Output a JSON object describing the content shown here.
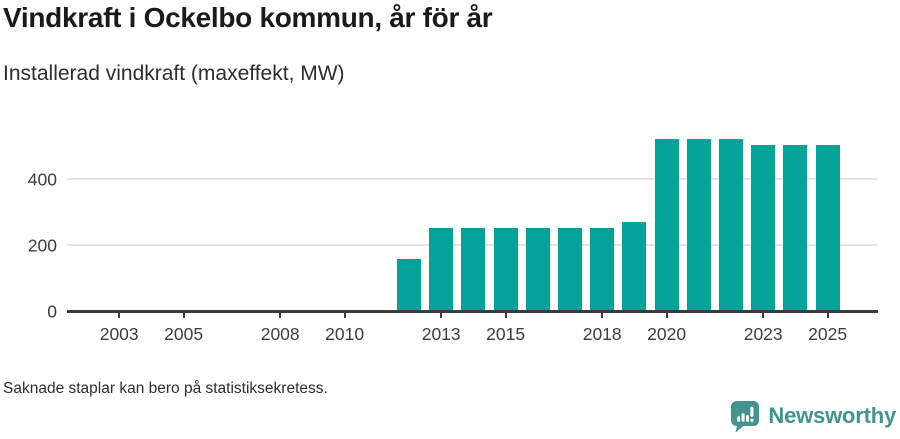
{
  "header": {
    "title": "Vindkraft i Ockelbo kommun, år för år",
    "subtitle": "Installerad vindkraft (maxeffekt, MW)"
  },
  "footer": {
    "note": "Saknade staplar kan bero på statistiksekretess."
  },
  "branding": {
    "name": "Newsworthy",
    "logo_icon": "bar-chart-speech-bubble-badge"
  },
  "colors": {
    "bar": "#04a39a",
    "axis": "#3b3b3b",
    "grid": "#e4e4e4",
    "brand": "#43948c",
    "title_text": "#1a1a1a",
    "body_text": "#2e2e2e",
    "tick_text": "#3d3d3d"
  },
  "chart_data": {
    "type": "bar",
    "title": "Vindkraft i Ockelbo kommun, år för år",
    "subtitle": "Installerad vindkraft (maxeffekt, MW)",
    "xlabel": "",
    "ylabel": "Installerad vindkraft (maxeffekt, MW)",
    "x": [
      2002,
      2003,
      2004,
      2005,
      2006,
      2007,
      2008,
      2009,
      2010,
      2011,
      2012,
      2013,
      2014,
      2015,
      2016,
      2017,
      2018,
      2019,
      2020,
      2021,
      2022,
      2023,
      2024,
      2025
    ],
    "values": [
      null,
      null,
      null,
      null,
      null,
      null,
      null,
      null,
      null,
      null,
      156,
      250,
      250,
      250,
      250,
      250,
      250,
      270,
      520,
      520,
      520,
      502,
      502,
      502
    ],
    "xticks": [
      2003,
      2005,
      2008,
      2010,
      2013,
      2015,
      2018,
      2020,
      2023,
      2025
    ],
    "yticks": [
      0,
      200,
      400
    ],
    "ylim": [
      0,
      609
    ],
    "grid": "horizontal",
    "legend": "none"
  }
}
